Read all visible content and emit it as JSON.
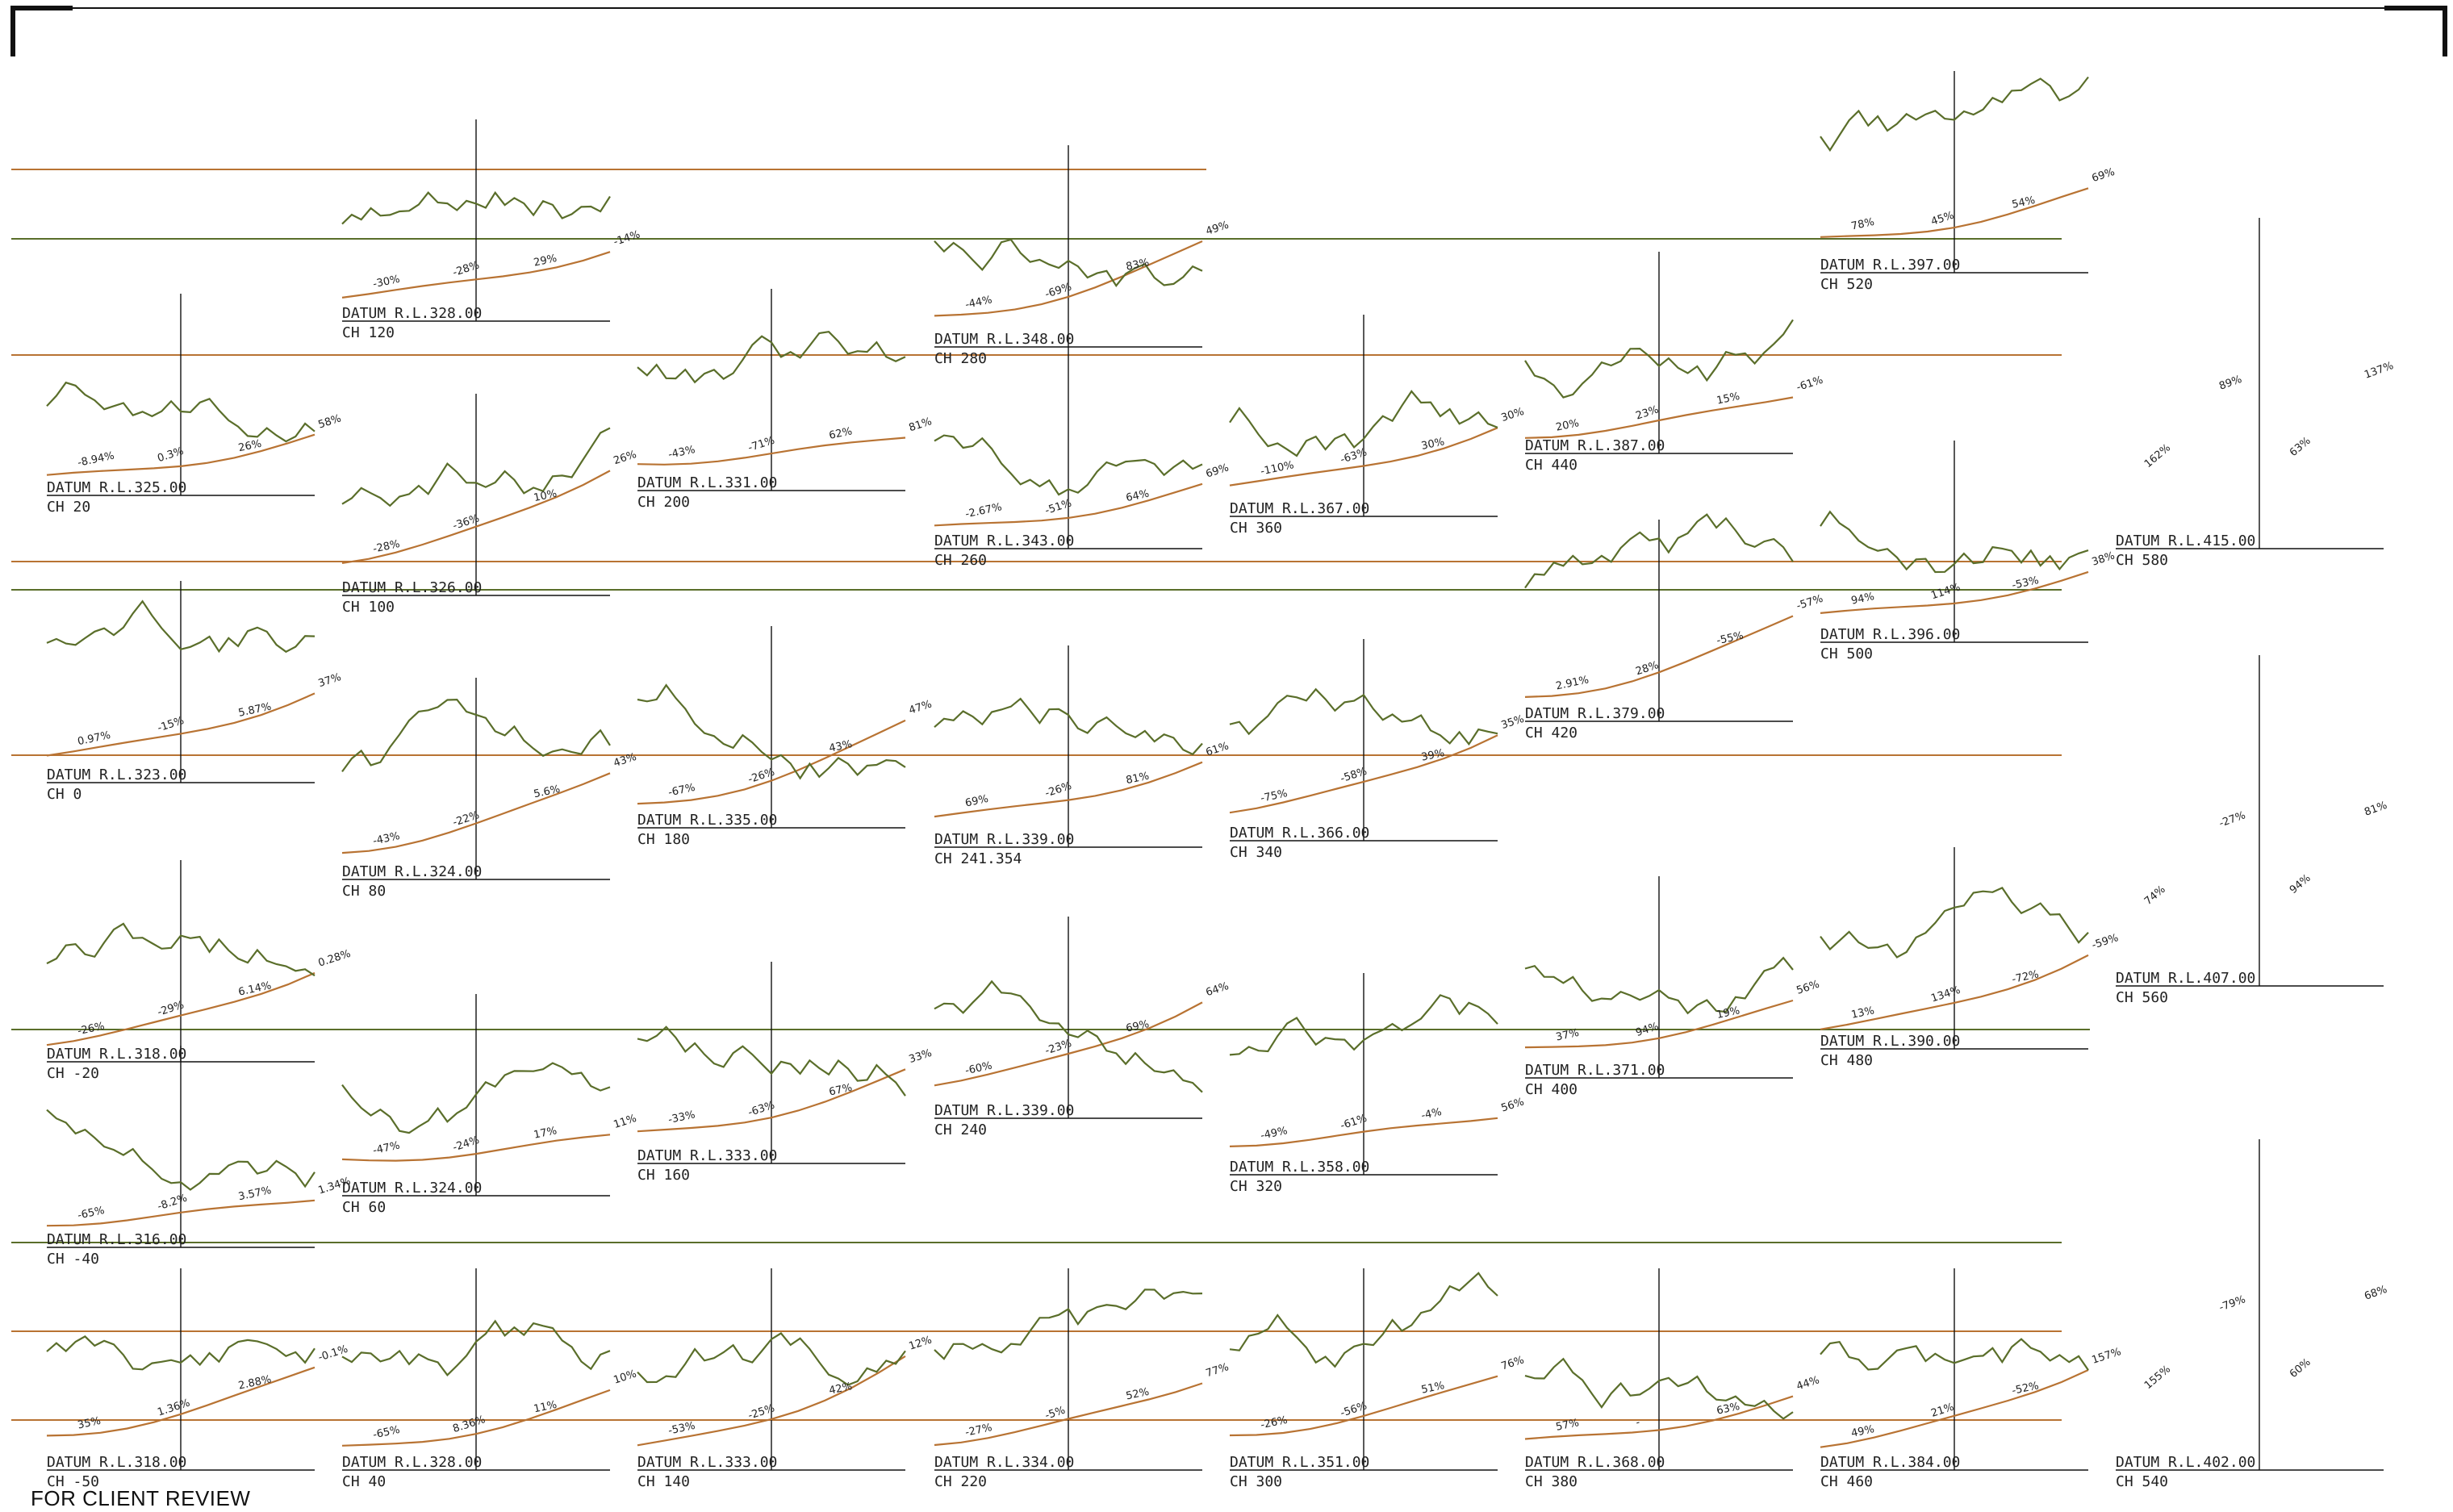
{
  "stamp": "FOR CLIENT REVIEW",
  "colors": {
    "ground": "#5a6e2a",
    "design": "#b87333",
    "highlight": "#2233aa",
    "frame": "#111111"
  },
  "sections": [
    {
      "ch": "CH -50",
      "datum": "DATUM R.L.318.00",
      "slopes": [
        "35%",
        "1.36%",
        "2.88%",
        "-0.1%"
      ]
    },
    {
      "ch": "CH -40",
      "datum": "DATUM R.L.316.00",
      "slopes": [
        "-65%",
        "-8.2%",
        "3.57%",
        "1.34%"
      ]
    },
    {
      "ch": "CH -20",
      "datum": "DATUM R.L.318.00",
      "slopes": [
        "-26%",
        "-29%",
        "6.14%",
        "0.28%"
      ]
    },
    {
      "ch": "CH 0",
      "datum": "DATUM R.L.323.00",
      "slopes": [
        "0.97%",
        "-15%",
        "5.87%",
        "37%"
      ]
    },
    {
      "ch": "CH 20",
      "datum": "DATUM R.L.325.00",
      "slopes": [
        "-8.94%",
        "0.3%",
        "26%",
        "58%"
      ]
    },
    {
      "ch": "CH 40",
      "datum": "DATUM R.L.328.00",
      "slopes": [
        "-65%",
        "8.36%",
        "11%",
        "10%"
      ]
    },
    {
      "ch": "CH 60",
      "datum": "DATUM R.L.324.00",
      "slopes": [
        "-47%",
        "-24%",
        "17%",
        "11%"
      ]
    },
    {
      "ch": "CH 80",
      "datum": "DATUM R.L.324.00",
      "slopes": [
        "-43%",
        "-22%",
        "5.6%",
        "43%"
      ]
    },
    {
      "ch": "CH 100",
      "datum": "DATUM R.L.326.00",
      "slopes": [
        "-28%",
        "-36%",
        "10%",
        "26%"
      ]
    },
    {
      "ch": "CH 120",
      "datum": "DATUM R.L.328.00",
      "slopes": [
        "-30%",
        "-28%",
        "29%",
        "-14%"
      ]
    },
    {
      "ch": "CH 140",
      "datum": "DATUM R.L.333.00",
      "slopes": [
        "-53%",
        "-25%",
        "42%",
        "12%"
      ]
    },
    {
      "ch": "CH 160",
      "datum": "DATUM R.L.333.00",
      "slopes": [
        "-33%",
        "-63%",
        "67%",
        "33%"
      ]
    },
    {
      "ch": "CH 180",
      "datum": "DATUM R.L.335.00",
      "slopes": [
        "-67%",
        "-26%",
        "43%",
        "47%"
      ]
    },
    {
      "ch": "CH 200",
      "datum": "DATUM R.L.331.00",
      "slopes": [
        "-43%",
        "-71%",
        "62%",
        "81%"
      ]
    },
    {
      "ch": "CH 220",
      "datum": "DATUM R.L.334.00",
      "slopes": [
        "-27%",
        "-5%",
        "52%",
        "77%"
      ]
    },
    {
      "ch": "CH 240",
      "datum": "DATUM R.L.339.00",
      "slopes": [
        "-60%",
        "-23%",
        "69%",
        "64%"
      ]
    },
    {
      "ch": "CH 241.354",
      "datum": "DATUM R.L.339.00",
      "slopes": [
        "69%",
        "-26%",
        "81%",
        "61%"
      ]
    },
    {
      "ch": "CH 260",
      "datum": "DATUM R.L.343.00",
      "slopes": [
        "-2.67%",
        "-51%",
        "64%",
        "69%"
      ]
    },
    {
      "ch": "CH 280",
      "datum": "DATUM R.L.348.00",
      "slopes": [
        "-44%",
        "-69%",
        "83%",
        "49%"
      ]
    },
    {
      "ch": "CH 300",
      "datum": "DATUM R.L.351.00",
      "slopes": [
        "-26%",
        "-56%",
        "51%",
        "76%"
      ]
    },
    {
      "ch": "CH 320",
      "datum": "DATUM R.L.358.00",
      "slopes": [
        "-49%",
        "-61%",
        "-4%",
        "56%"
      ]
    },
    {
      "ch": "CH 340",
      "datum": "DATUM R.L.366.00",
      "slopes": [
        "-75%",
        "-58%",
        "39%",
        "35%"
      ]
    },
    {
      "ch": "CH 360",
      "datum": "DATUM R.L.367.00",
      "slopes": [
        "-110%",
        "-63%",
        "30%",
        "30%"
      ]
    },
    {
      "ch": "CH 380",
      "datum": "DATUM R.L.368.00",
      "slopes": [
        "57%",
        "-",
        "63%",
        "44%"
      ]
    },
    {
      "ch": "CH 400",
      "datum": "DATUM R.L.371.00",
      "slopes": [
        "37%",
        "94%",
        "19%",
        "56%"
      ]
    },
    {
      "ch": "CH 420",
      "datum": "DATUM R.L.379.00",
      "slopes": [
        "2.91%",
        "28%",
        "-55%",
        "-57%"
      ]
    },
    {
      "ch": "CH 440",
      "datum": "DATUM R.L.387.00",
      "slopes": [
        "20%",
        "23%",
        "15%",
        "-61%"
      ]
    },
    {
      "ch": "CH 460",
      "datum": "DATUM R.L.384.00",
      "slopes": [
        "49%",
        "21%",
        "-52%",
        "157%"
      ]
    },
    {
      "ch": "CH 480",
      "datum": "DATUM R.L.390.00",
      "slopes": [
        "13%",
        "134%",
        "-72%",
        "-59%"
      ]
    },
    {
      "ch": "CH 500",
      "datum": "DATUM R.L.396.00",
      "slopes": [
        "94%",
        "114%",
        "-53%",
        "38%"
      ]
    },
    {
      "ch": "CH 520",
      "datum": "DATUM R.L.397.00",
      "slopes": [
        "78%",
        "45%",
        "54%",
        "69%"
      ]
    },
    {
      "ch": "CH 540",
      "datum": "DATUM R.L.402.00",
      "slopes": [
        "155%",
        "-79%",
        "60%",
        "68%"
      ]
    },
    {
      "ch": "CH 560",
      "datum": "DATUM R.L.407.00",
      "slopes": [
        "74%",
        "-27%",
        "94%",
        "81%"
      ]
    },
    {
      "ch": "CH 580",
      "datum": "DATUM R.L.415.00",
      "slopes": [
        "162%",
        "89%",
        "63%",
        "137%"
      ]
    }
  ]
}
